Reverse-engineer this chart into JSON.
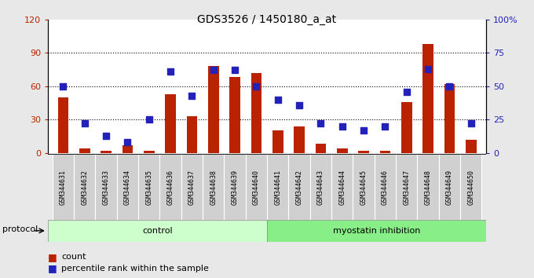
{
  "title": "GDS3526 / 1450180_a_at",
  "samples": [
    "GSM344631",
    "GSM344632",
    "GSM344633",
    "GSM344634",
    "GSM344635",
    "GSM344636",
    "GSM344637",
    "GSM344638",
    "GSM344639",
    "GSM344640",
    "GSM344641",
    "GSM344642",
    "GSM344643",
    "GSM344644",
    "GSM344645",
    "GSM344646",
    "GSM344647",
    "GSM344648",
    "GSM344649",
    "GSM344650"
  ],
  "counts": [
    50,
    4,
    2,
    7,
    2,
    53,
    33,
    78,
    68,
    72,
    20,
    24,
    8,
    4,
    2,
    2,
    46,
    98,
    62,
    12
  ],
  "percentiles": [
    50,
    22,
    13,
    8,
    25,
    61,
    43,
    62,
    62,
    50,
    40,
    36,
    22,
    20,
    17,
    20,
    46,
    63,
    50,
    22
  ],
  "control_count": 10,
  "group_labels": [
    "control",
    "myostatin inhibition"
  ],
  "control_color": "#ccffcc",
  "myo_color": "#88ee88",
  "bar_color": "#bb2200",
  "dot_color": "#2222bb",
  "left_ylim": [
    0,
    120
  ],
  "right_ylim": [
    0,
    100
  ],
  "left_yticks": [
    0,
    30,
    60,
    90,
    120
  ],
  "right_yticks": [
    0,
    25,
    50,
    75,
    100
  ],
  "right_yticklabels": [
    "0",
    "25",
    "50",
    "75",
    "100%"
  ],
  "bg_color": "#e8e8e8",
  "plot_bg": "#ffffff",
  "cell_color": "#d0d0d0",
  "title_fontsize": 10,
  "legend_count_label": "count",
  "legend_pct_label": "percentile rank within the sample",
  "protocol_label": "protocol"
}
